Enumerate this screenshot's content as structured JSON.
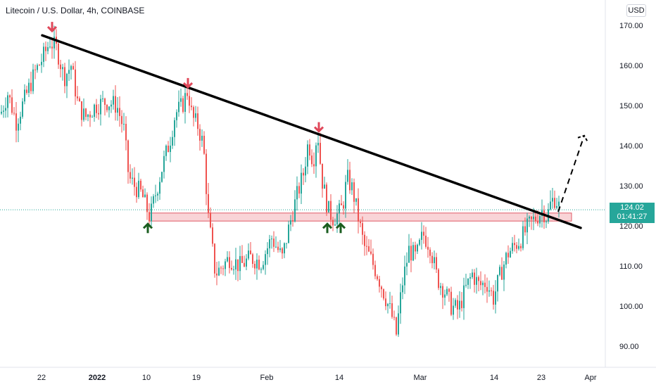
{
  "header": {
    "title": "Litecoin / U.S. Dollar, 4h, COINBASE",
    "currency": "USD"
  },
  "last_price": {
    "value": "124.02",
    "countdown": "01:41:27"
  },
  "colors": {
    "up": "#26a69a",
    "down": "#ef5350",
    "candle_up": "#26a69a",
    "candle_down": "#ef5350",
    "trendline": "#000000",
    "zone_fill": "#f7c6c9",
    "zone_stroke": "#e05a66",
    "arrow_down": "#e0485a",
    "arrow_up": "#1b5e20",
    "price_line": "#26a69a",
    "axis_text": "#131722"
  },
  "chart_data": {
    "type": "candlestick",
    "title": "Litecoin / U.S. Dollar, 4h, COINBASE",
    "xlabel": "",
    "ylabel": "",
    "y_ticks": [
      170,
      160,
      150,
      140,
      130,
      120,
      110,
      100,
      90
    ],
    "y_tick_labels": [
      "170.00",
      "160.00",
      "150.00",
      "140.00",
      "130.00",
      "120.00",
      "110.00",
      "100.00",
      "90.00"
    ],
    "x_tick_labels": [
      "22",
      "2022",
      "10",
      "19",
      "Feb",
      "14",
      "Mar",
      "14",
      "23",
      "Apr"
    ],
    "ylim": [
      84,
      175
    ],
    "grid": false,
    "last_price": 124.02,
    "path": [
      [
        0,
        148
      ],
      [
        10,
        153
      ],
      [
        22,
        146
      ],
      [
        35,
        152
      ],
      [
        48,
        158
      ],
      [
        60,
        162
      ],
      [
        70,
        166
      ],
      [
        80,
        164
      ],
      [
        90,
        157
      ],
      [
        100,
        160
      ],
      [
        110,
        150
      ],
      [
        120,
        147
      ],
      [
        135,
        150
      ],
      [
        150,
        151
      ],
      [
        165,
        150
      ],
      [
        175,
        144
      ],
      [
        182,
        132
      ],
      [
        190,
        130
      ],
      [
        200,
        128
      ],
      [
        212,
        122
      ],
      [
        220,
        128
      ],
      [
        230,
        135
      ],
      [
        240,
        141
      ],
      [
        248,
        148
      ],
      [
        258,
        150
      ],
      [
        266,
        154
      ],
      [
        272,
        147
      ],
      [
        280,
        145
      ],
      [
        288,
        140
      ],
      [
        295,
        122
      ],
      [
        305,
        108
      ],
      [
        315,
        110
      ],
      [
        325,
        112
      ],
      [
        340,
        110
      ],
      [
        355,
        112
      ],
      [
        370,
        111
      ],
      [
        385,
        117
      ],
      [
        400,
        112
      ],
      [
        410,
        120
      ],
      [
        420,
        127
      ],
      [
        430,
        133
      ],
      [
        437,
        141
      ],
      [
        444,
        136
      ],
      [
        450,
        144
      ],
      [
        456,
        132
      ],
      [
        465,
        124
      ],
      [
        472,
        122
      ],
      [
        480,
        123
      ],
      [
        486,
        125
      ],
      [
        492,
        132
      ],
      [
        500,
        129
      ],
      [
        508,
        122
      ],
      [
        516,
        115
      ],
      [
        525,
        112
      ],
      [
        535,
        108
      ],
      [
        545,
        103
      ],
      [
        555,
        98
      ],
      [
        562,
        93
      ],
      [
        570,
        105
      ],
      [
        580,
        114
      ],
      [
        590,
        112
      ],
      [
        600,
        118
      ],
      [
        610,
        115
      ],
      [
        620,
        107
      ],
      [
        630,
        104
      ],
      [
        640,
        100
      ],
      [
        650,
        99
      ],
      [
        660,
        104
      ],
      [
        670,
        108
      ],
      [
        680,
        105
      ],
      [
        690,
        106
      ],
      [
        700,
        102
      ],
      [
        710,
        108
      ],
      [
        720,
        113
      ],
      [
        730,
        115
      ],
      [
        740,
        117
      ],
      [
        750,
        120
      ],
      [
        760,
        122
      ],
      [
        770,
        124
      ],
      [
        776,
        122
      ],
      [
        782,
        126
      ],
      [
        788,
        127
      ],
      [
        795,
        124
      ]
    ],
    "trendline": {
      "from": [
        60,
        167.5
      ],
      "to": [
        825,
        119.5
      ]
    },
    "support_zone": {
      "x_from": 212,
      "x_to": 812,
      "y_low": 121.2,
      "y_high": 123.2
    },
    "projection": {
      "from": [
        793,
        123.5
      ],
      "to": [
        830,
        142.5
      ]
    },
    "markers_down": [
      [
        74,
        167
      ],
      [
        267,
        153
      ],
      [
        453,
        142
      ]
    ],
    "markers_up": [
      [
        210,
        121
      ],
      [
        465,
        121
      ],
      [
        484,
        121
      ]
    ]
  }
}
